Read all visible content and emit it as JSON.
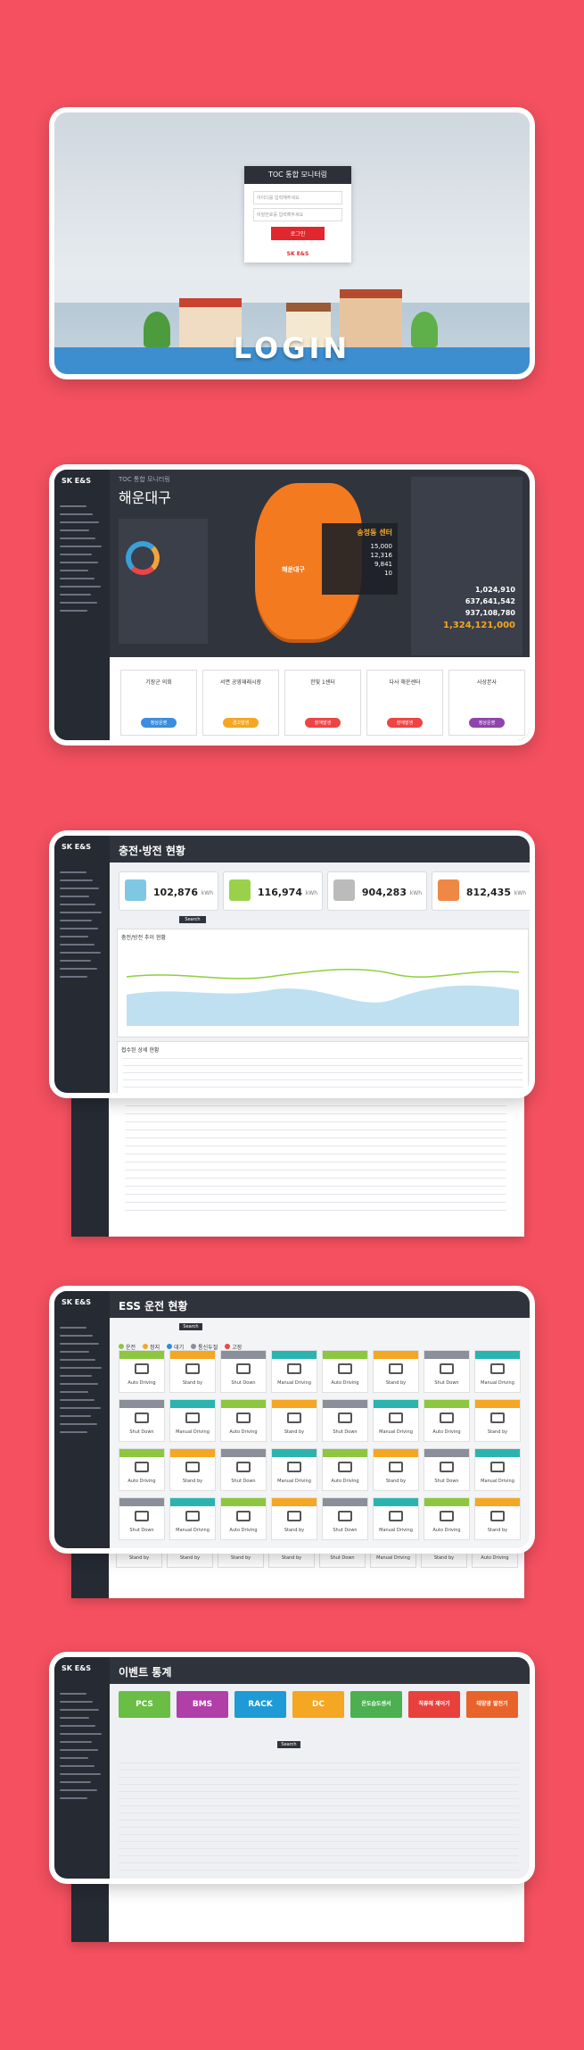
{
  "login": {
    "title": "TOC 통합 모니터링",
    "id_placeholder": "아이디를 입력해주세요",
    "pw_placeholder": "비밀번호를 입력해주세요",
    "button": "로그인",
    "hero": "LOGIN",
    "brand": "SK E&S"
  },
  "dashboard": {
    "logo": "SK E&S",
    "system": "TOC 통합 모니터링",
    "region": "해운대구",
    "map_label": "해운대구",
    "center": "송정동 센터",
    "center_stats": [
      "15,000",
      "12,316",
      "9,841",
      "10"
    ],
    "totals": [
      "1,024,910",
      "637,641,542",
      "937,108,780",
      "1,324,121,000"
    ],
    "cards": [
      {
        "title": "기장군 의회",
        "button": "정상운영"
      },
      {
        "title": "서면 공영재래시장",
        "button": "경고발생"
      },
      {
        "title": "한빛 1센터",
        "button": "장애발생"
      },
      {
        "title": "다사 해운센터",
        "button": "장애발생"
      },
      {
        "title": "사상본사",
        "button": "정상운영"
      }
    ]
  },
  "charge": {
    "title": "충전·방전 현황",
    "kpis": [
      {
        "value": "102,876",
        "unit": "kWh"
      },
      {
        "value": "116,974",
        "unit": "kWh"
      },
      {
        "value": "904,283",
        "unit": "kWh"
      },
      {
        "value": "812,435",
        "unit": "kWh"
      }
    ],
    "search": "Search",
    "chart_title": "충전/방전 추이 현황",
    "table_title": "접수된 상세 현황"
  },
  "ess": {
    "title": "ESS 운전 현황",
    "search": "Search",
    "legend": [
      "운전",
      "정지",
      "대기",
      "통신두절",
      "고장"
    ],
    "states": [
      "Auto Driving",
      "Stand by",
      "Shut Down",
      "Manual Driving",
      "Auto Driving",
      "Stand by",
      "Shut Down",
      "Manual Driving",
      "Shut Down",
      "Manual Driving",
      "Auto Driving",
      "Stand by",
      "Shut Down",
      "Manual Driving",
      "Auto Driving",
      "Stand by",
      "Auto Driving",
      "Stand by",
      "Shut Down",
      "Manual Driving",
      "Auto Driving",
      "Stand by",
      "Shut Down",
      "Manual Driving",
      "Shut Down",
      "Manual Driving",
      "Auto Driving",
      "Stand by",
      "Shut Down",
      "Manual Driving",
      "Auto Driving",
      "Stand by",
      "Stand by",
      "Stand by",
      "Stand by",
      "Stand by",
      "Shut Down",
      "Manual Driving",
      "Stand by",
      "Auto Driving"
    ]
  },
  "events": {
    "title": "이벤트 통계",
    "tiles": [
      "PCS",
      "BMS",
      "RACK",
      "DC",
      "온도습도센서",
      "직류에 제어기",
      "태양광 발전기"
    ],
    "search": "Search"
  }
}
